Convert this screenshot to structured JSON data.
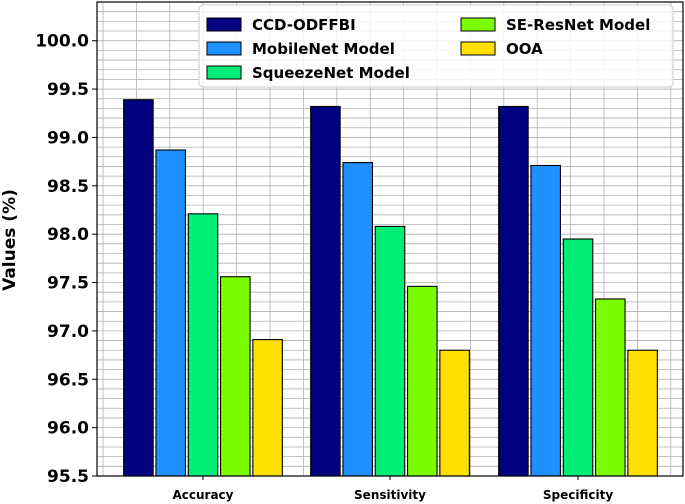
{
  "chart_data": {
    "type": "bar",
    "title": "",
    "xlabel": "",
    "ylabel": "Values (%)",
    "ylim": [
      95.5,
      100.4
    ],
    "yticks": [
      95.5,
      96.0,
      96.5,
      97.0,
      97.5,
      98.0,
      98.5,
      99.0,
      99.5,
      100.0
    ],
    "ytick_labels": [
      "95.5",
      "96.0",
      "96.5",
      "97.0",
      "97.5",
      "98.0",
      "98.5",
      "99.0",
      "99.5",
      "100.0"
    ],
    "categories": [
      "Accuracy",
      "Sensitivity",
      "Specificity"
    ],
    "grid": true,
    "legend_position": "top-right",
    "series": [
      {
        "name": "CCD-ODFFBI",
        "color": "#000080",
        "values": [
          99.39,
          99.32,
          99.32
        ]
      },
      {
        "name": "MobileNet Model",
        "color": "#1e90ff",
        "values": [
          98.87,
          98.74,
          98.71
        ]
      },
      {
        "name": "SqueezeNet Model",
        "color": "#00ee76",
        "values": [
          98.21,
          98.08,
          97.95
        ]
      },
      {
        "name": "SE-ResNet Model",
        "color": "#7cfc00",
        "values": [
          97.56,
          97.46,
          97.33
        ]
      },
      {
        "name": "OOA",
        "color": "#ffe000",
        "values": [
          96.91,
          96.8,
          96.8
        ]
      }
    ]
  }
}
